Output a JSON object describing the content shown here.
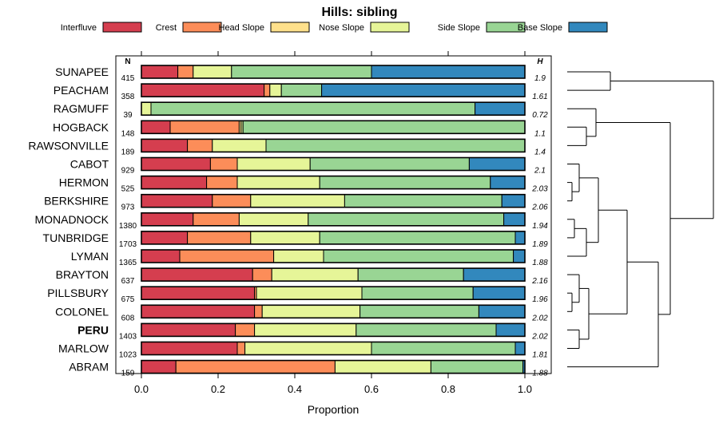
{
  "chart_data": {
    "type": "bar",
    "orientation": "horizontal",
    "stacked": true,
    "title": "Hills: sibling",
    "xlabel": "Proportion",
    "xlim": [
      0,
      1
    ],
    "xticks": [
      "0.0",
      "0.2",
      "0.4",
      "0.6",
      "0.8",
      "1.0"
    ],
    "n_header": "N",
    "h_header": "H",
    "segments": [
      {
        "name": "Interfluve",
        "color": "#d53e4f"
      },
      {
        "name": "Crest",
        "color": "#fc8d59"
      },
      {
        "name": "Head Slope",
        "color": "#fee08b"
      },
      {
        "name": "Nose Slope",
        "color": "#e6f598"
      },
      {
        "name": "Side Slope",
        "color": "#99d594"
      },
      {
        "name": "Base Slope",
        "color": "#3288bd"
      }
    ],
    "rows": [
      {
        "label": "SUNAPEE",
        "n": "415",
        "h": "1.9",
        "bold": false,
        "values": [
          0.095,
          0.04,
          0.0,
          0.1,
          0.365,
          0.4
        ]
      },
      {
        "label": "PEACHAM",
        "n": "358",
        "h": "1.61",
        "bold": false,
        "values": [
          0.32,
          0.015,
          0.0,
          0.03,
          0.105,
          0.53
        ]
      },
      {
        "label": "RAGMUFF",
        "n": "39",
        "h": "0.72",
        "bold": false,
        "values": [
          0.0,
          0.0,
          0.0,
          0.025,
          0.845,
          0.13
        ]
      },
      {
        "label": "HOGBACK",
        "n": "148",
        "h": "1.1",
        "bold": false,
        "values": [
          0.075,
          0.18,
          0.005,
          0.005,
          0.735,
          0.0
        ]
      },
      {
        "label": "RAWSONVILLE",
        "n": "189",
        "h": "1.4",
        "bold": false,
        "values": [
          0.12,
          0.065,
          0.0,
          0.14,
          0.675,
          0.0
        ]
      },
      {
        "label": "CABOT",
        "n": "929",
        "h": "2.1",
        "bold": false,
        "values": [
          0.18,
          0.07,
          0.0,
          0.19,
          0.415,
          0.145
        ]
      },
      {
        "label": "HERMON",
        "n": "525",
        "h": "2.03",
        "bold": false,
        "values": [
          0.17,
          0.08,
          0.0,
          0.215,
          0.445,
          0.09
        ]
      },
      {
        "label": "BERKSHIRE",
        "n": "973",
        "h": "2.06",
        "bold": false,
        "values": [
          0.185,
          0.1,
          0.0,
          0.245,
          0.41,
          0.06
        ]
      },
      {
        "label": "MONADNOCK",
        "n": "1380",
        "h": "1.94",
        "bold": false,
        "values": [
          0.135,
          0.12,
          0.0,
          0.18,
          0.51,
          0.055
        ]
      },
      {
        "label": "TUNBRIDGE",
        "n": "1703",
        "h": "1.89",
        "bold": false,
        "values": [
          0.12,
          0.165,
          0.0,
          0.18,
          0.51,
          0.025
        ]
      },
      {
        "label": "LYMAN",
        "n": "1365",
        "h": "1.88",
        "bold": false,
        "values": [
          0.1,
          0.245,
          0.0,
          0.13,
          0.495,
          0.03
        ]
      },
      {
        "label": "BRAYTON",
        "n": "637",
        "h": "2.16",
        "bold": false,
        "values": [
          0.29,
          0.05,
          0.0,
          0.225,
          0.275,
          0.16
        ]
      },
      {
        "label": "PILLSBURY",
        "n": "675",
        "h": "1.96",
        "bold": false,
        "values": [
          0.295,
          0.005,
          0.0,
          0.275,
          0.29,
          0.135
        ]
      },
      {
        "label": "COLONEL",
        "n": "608",
        "h": "2.02",
        "bold": false,
        "values": [
          0.295,
          0.02,
          0.0,
          0.255,
          0.31,
          0.12
        ]
      },
      {
        "label": "PERU",
        "n": "1403",
        "h": "2.02",
        "bold": true,
        "values": [
          0.245,
          0.05,
          0.0,
          0.265,
          0.365,
          0.075
        ]
      },
      {
        "label": "MARLOW",
        "n": "1023",
        "h": "1.81",
        "bold": false,
        "values": [
          0.25,
          0.02,
          0.0,
          0.33,
          0.375,
          0.025
        ]
      },
      {
        "label": "ABRAM",
        "n": "159",
        "h": "1.88",
        "bold": false,
        "values": [
          0.09,
          0.415,
          0.0,
          0.25,
          0.24,
          0.005
        ]
      }
    ],
    "dendrogram": {
      "orientation": "right",
      "merges": [
        [
          0,
          1,
          0.18
        ],
        [
          3,
          4,
          0.08
        ],
        [
          2,
          18,
          0.12
        ],
        [
          6,
          7,
          0.02
        ],
        [
          5,
          20,
          0.05
        ],
        [
          8,
          9,
          0.03
        ],
        [
          22,
          10,
          0.08
        ],
        [
          21,
          23,
          0.13
        ],
        [
          12,
          13,
          0.02
        ],
        [
          11,
          25,
          0.05
        ],
        [
          14,
          15,
          0.05
        ],
        [
          26,
          27,
          0.09
        ],
        [
          24,
          28,
          0.25
        ],
        [
          29,
          16,
          0.38
        ],
        [
          19,
          30,
          0.43
        ],
        [
          17,
          31,
          0.61
        ]
      ],
      "max_height": 0.61
    }
  }
}
